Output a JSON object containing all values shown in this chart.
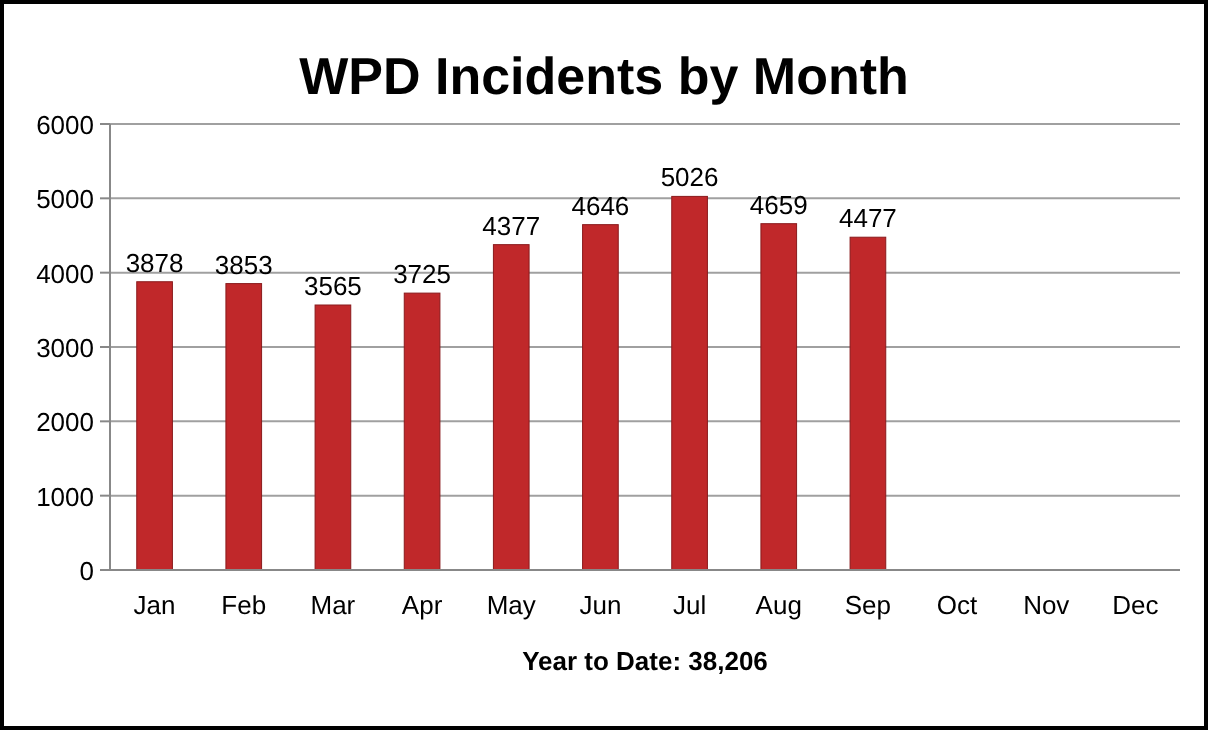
{
  "chart_data": {
    "type": "bar",
    "title": "WPD Incidents by Month",
    "xlabel": "Year to Date: 38,206",
    "categories": [
      "Jan",
      "Feb",
      "Mar",
      "Apr",
      "May",
      "Jun",
      "Jul",
      "Aug",
      "Sep",
      "Oct",
      "Nov",
      "Dec"
    ],
    "values": [
      3878,
      3853,
      3565,
      3725,
      4377,
      4646,
      5026,
      4659,
      4477,
      null,
      null,
      null
    ],
    "color": "#c0282a",
    "ylim": [
      0,
      6000
    ],
    "yticks": [
      0,
      1000,
      2000,
      3000,
      4000,
      5000,
      6000
    ],
    "grid": "y",
    "data_labels": true
  }
}
